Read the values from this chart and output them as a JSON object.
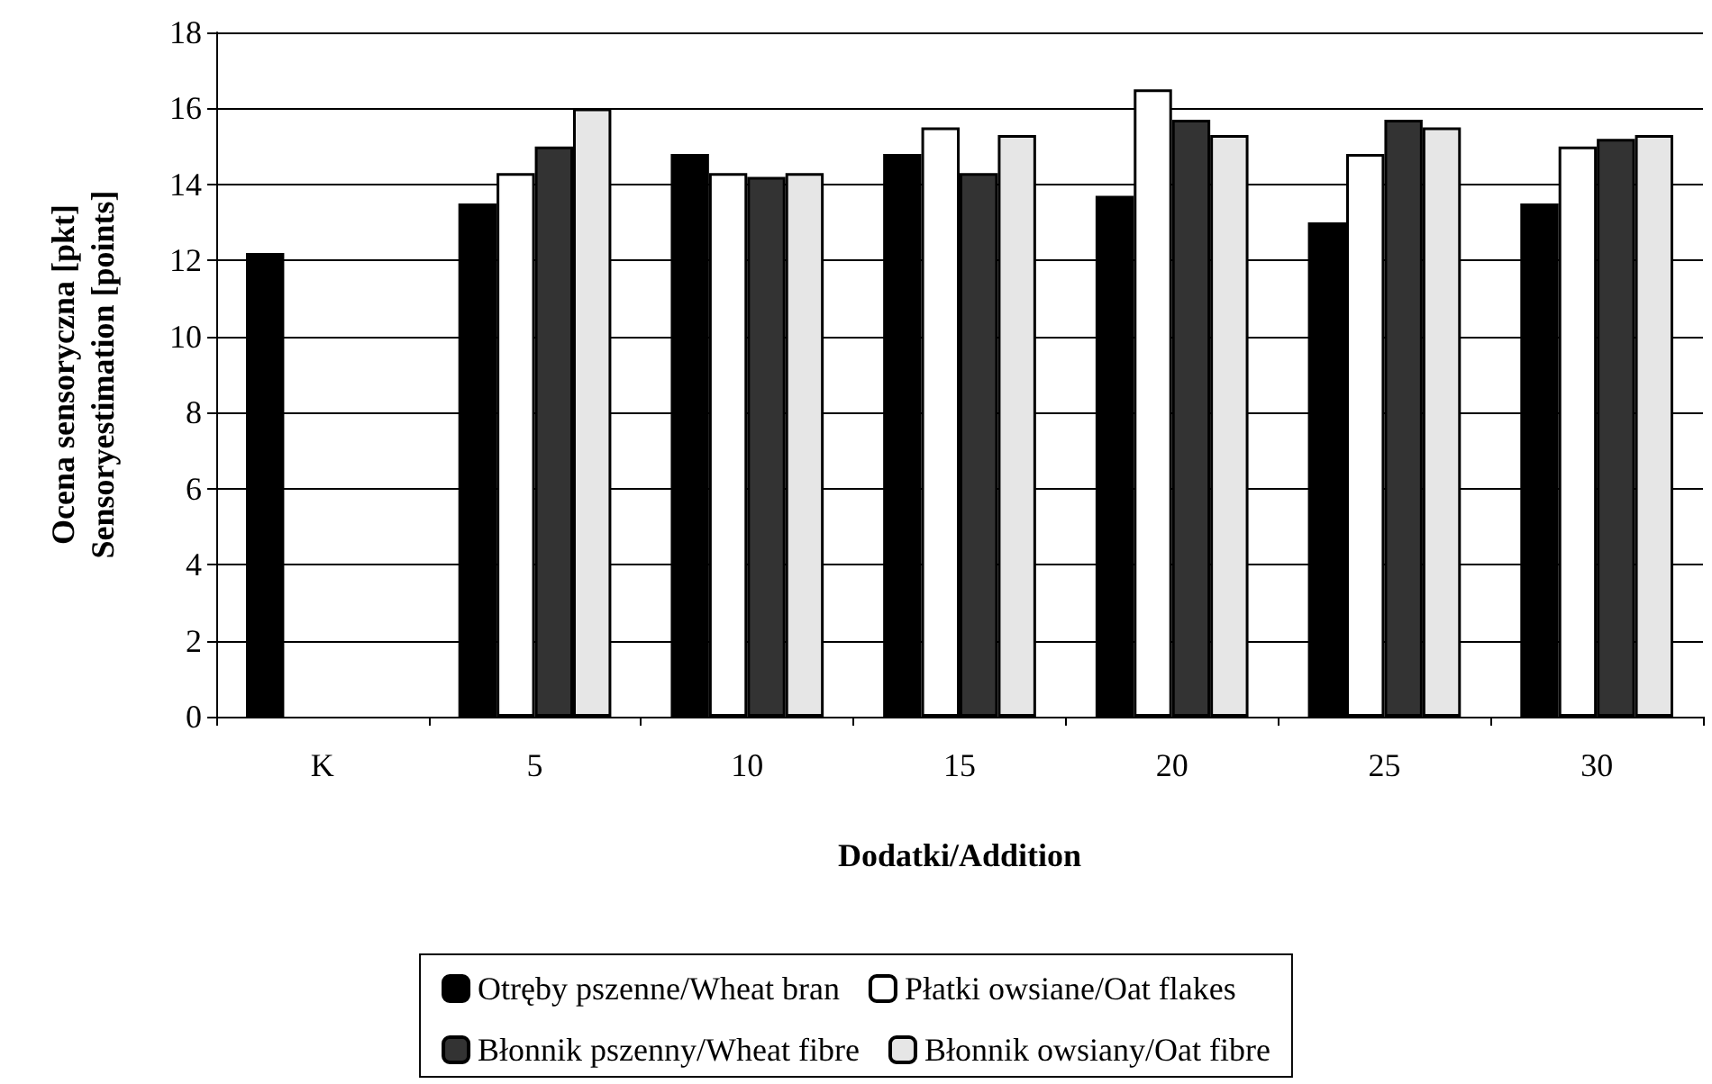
{
  "chart_data": {
    "type": "bar",
    "xlabel": "Dodatki/Addition",
    "ylabel": "Ocena sensoryczna [pkt]\nSensoryestimation [points]",
    "categories": [
      "K",
      "5",
      "10",
      "15",
      "20",
      "25",
      "30"
    ],
    "series": [
      {
        "name": "Otręby pszenne/Wheat bran",
        "color": "#000000",
        "values": [
          12.2,
          13.5,
          14.8,
          14.8,
          13.7,
          13.0,
          13.5
        ]
      },
      {
        "name": "Płatki owsiane/Oat flakes",
        "color": "#ffffff",
        "values": [
          null,
          14.3,
          14.3,
          15.5,
          16.5,
          14.8,
          15.0
        ]
      },
      {
        "name": "Błonnik pszenny/Wheat fibre",
        "color": "#333333",
        "values": [
          null,
          15.0,
          14.2,
          14.3,
          15.7,
          15.7,
          15.2
        ]
      },
      {
        "name": "Błonnik owsiany/Oat fibre",
        "color": "#e6e6e6",
        "values": [
          null,
          16.0,
          14.3,
          15.3,
          15.3,
          15.5,
          15.3
        ]
      }
    ],
    "ylim": [
      0,
      18
    ],
    "yticks": [
      0,
      2,
      4,
      6,
      8,
      10,
      12,
      14,
      16,
      18
    ],
    "grid": "y",
    "legend": "bottom"
  }
}
